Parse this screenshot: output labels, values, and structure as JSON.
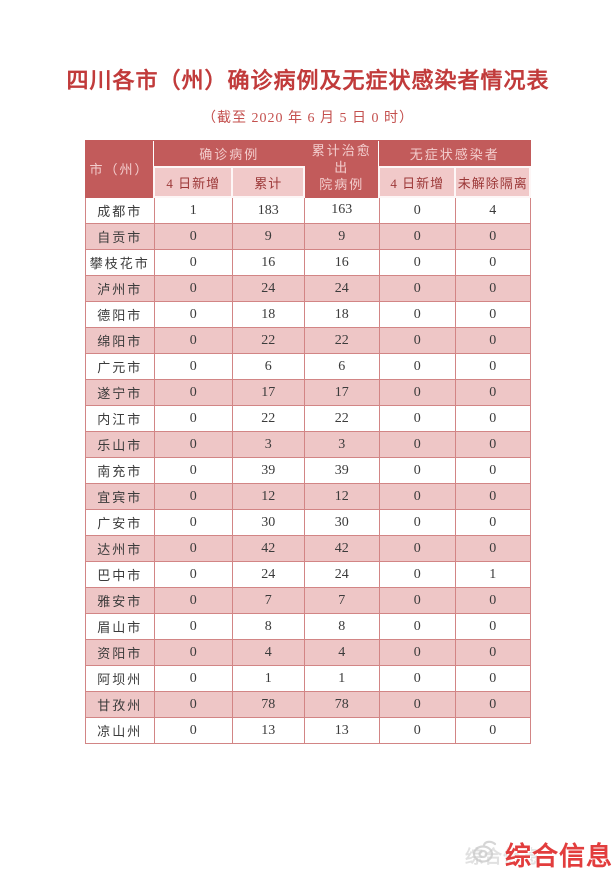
{
  "page": {
    "title": "四川各市（州）确诊病例及无症状感染者情况表",
    "subtitle": "（截至 2020 年 6 月 5 日 0 时）"
  },
  "table": {
    "header": {
      "city": "市（州）",
      "confirmed_group": "确诊病例",
      "cured": "累计治愈出\n院病例",
      "asymptomatic_group": "无症状感染者",
      "sub": [
        "4 日新增",
        "累计",
        "4 日新增",
        "未解除隔离"
      ]
    },
    "rows": [
      {
        "city": "成都市",
        "values": [
          "1",
          "183",
          "163",
          "0",
          "4"
        ]
      },
      {
        "city": "自贡市",
        "values": [
          "0",
          "9",
          "9",
          "0",
          "0"
        ]
      },
      {
        "city": "攀枝花市",
        "values": [
          "0",
          "16",
          "16",
          "0",
          "0"
        ]
      },
      {
        "city": "泸州市",
        "values": [
          "0",
          "24",
          "24",
          "0",
          "0"
        ]
      },
      {
        "city": "德阳市",
        "values": [
          "0",
          "18",
          "18",
          "0",
          "0"
        ]
      },
      {
        "city": "绵阳市",
        "values": [
          "0",
          "22",
          "22",
          "0",
          "0"
        ]
      },
      {
        "city": "广元市",
        "values": [
          "0",
          "6",
          "6",
          "0",
          "0"
        ]
      },
      {
        "city": "遂宁市",
        "values": [
          "0",
          "17",
          "17",
          "0",
          "0"
        ]
      },
      {
        "city": "内江市",
        "values": [
          "0",
          "22",
          "22",
          "0",
          "0"
        ]
      },
      {
        "city": "乐山市",
        "values": [
          "0",
          "3",
          "3",
          "0",
          "0"
        ]
      },
      {
        "city": "南充市",
        "values": [
          "0",
          "39",
          "39",
          "0",
          "0"
        ]
      },
      {
        "city": "宜宾市",
        "values": [
          "0",
          "12",
          "12",
          "0",
          "0"
        ]
      },
      {
        "city": "广安市",
        "values": [
          "0",
          "30",
          "30",
          "0",
          "0"
        ]
      },
      {
        "city": "达州市",
        "values": [
          "0",
          "42",
          "42",
          "0",
          "0"
        ]
      },
      {
        "city": "巴中市",
        "values": [
          "0",
          "24",
          "24",
          "0",
          "1"
        ]
      },
      {
        "city": "雅安市",
        "values": [
          "0",
          "7",
          "7",
          "0",
          "0"
        ]
      },
      {
        "city": "眉山市",
        "values": [
          "0",
          "8",
          "8",
          "0",
          "0"
        ]
      },
      {
        "city": "资阳市",
        "values": [
          "0",
          "4",
          "4",
          "0",
          "0"
        ]
      },
      {
        "city": "阿坝州",
        "values": [
          "0",
          "1",
          "1",
          "0",
          "0"
        ]
      },
      {
        "city": "甘孜州",
        "values": [
          "0",
          "78",
          "78",
          "0",
          "0"
        ]
      },
      {
        "city": "凉山州",
        "values": [
          "0",
          "13",
          "13",
          "0",
          "0"
        ]
      }
    ]
  },
  "watermark": {
    "label": "综合信息"
  },
  "colors": {
    "title_red": "#c13b3b",
    "header_band": "#c25b5b",
    "subheader_pink": "#f1c9c9",
    "row_pink": "#eec6c6",
    "cell_border": "#d28585",
    "watermark_red": "#e23d3d"
  },
  "chart_data": {
    "type": "table",
    "title": "四川各市（州）确诊病例及无症状感染者情况表",
    "subtitle": "（截至 2020 年 6 月 5 日 0 时）",
    "columns": [
      "市（州）",
      "确诊病例-4日新增",
      "确诊病例-累计",
      "累计治愈出院病例",
      "无症状感染者-4日新增",
      "无症状感染者-未解除隔离"
    ],
    "rows": [
      [
        "成都市",
        1,
        183,
        163,
        0,
        4
      ],
      [
        "自贡市",
        0,
        9,
        9,
        0,
        0
      ],
      [
        "攀枝花市",
        0,
        16,
        16,
        0,
        0
      ],
      [
        "泸州市",
        0,
        24,
        24,
        0,
        0
      ],
      [
        "德阳市",
        0,
        18,
        18,
        0,
        0
      ],
      [
        "绵阳市",
        0,
        22,
        22,
        0,
        0
      ],
      [
        "广元市",
        0,
        6,
        6,
        0,
        0
      ],
      [
        "遂宁市",
        0,
        17,
        17,
        0,
        0
      ],
      [
        "内江市",
        0,
        22,
        22,
        0,
        0
      ],
      [
        "乐山市",
        0,
        3,
        3,
        0,
        0
      ],
      [
        "南充市",
        0,
        39,
        39,
        0,
        0
      ],
      [
        "宜宾市",
        0,
        12,
        12,
        0,
        0
      ],
      [
        "广安市",
        0,
        30,
        30,
        0,
        0
      ],
      [
        "达州市",
        0,
        42,
        42,
        0,
        0
      ],
      [
        "巴中市",
        0,
        24,
        24,
        0,
        1
      ],
      [
        "雅安市",
        0,
        7,
        7,
        0,
        0
      ],
      [
        "眉山市",
        0,
        8,
        8,
        0,
        0
      ],
      [
        "资阳市",
        0,
        4,
        4,
        0,
        0
      ],
      [
        "阿坝州",
        0,
        1,
        1,
        0,
        0
      ],
      [
        "甘孜州",
        0,
        78,
        78,
        0,
        0
      ],
      [
        "凉山州",
        0,
        13,
        13,
        0,
        0
      ]
    ]
  }
}
